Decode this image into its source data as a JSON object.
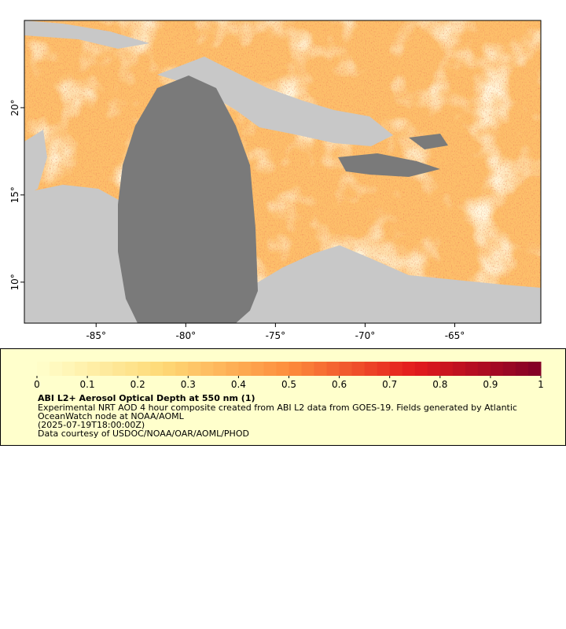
{
  "map": {
    "xlim": [
      -89,
      -60.2
    ],
    "ylim": [
      7.65,
      25
    ],
    "xticks": [
      {
        "value": -85,
        "label": "-85°"
      },
      {
        "value": -80,
        "label": "-80°"
      },
      {
        "value": -75,
        "label": "-75°"
      },
      {
        "value": -70,
        "label": "-70°"
      },
      {
        "value": -65,
        "label": "-65°"
      }
    ],
    "yticks": [
      {
        "value": 10,
        "label": "10°"
      },
      {
        "value": 15,
        "label": "15°"
      },
      {
        "value": 20,
        "label": "20°"
      }
    ]
  },
  "colorbar": {
    "lim": [
      0,
      1
    ],
    "ticks": [
      0,
      0.1,
      0.2,
      0.3,
      0.4,
      0.5,
      0.6,
      0.7,
      0.8,
      0.9,
      1
    ],
    "levels": 40,
    "colors": [
      "#ffffcc",
      "#fed976",
      "#fd8d3c",
      "#e31a1c",
      "#800026"
    ]
  },
  "title": "ABI L2+ Aerosol Optical Depth at 550 nm (1)",
  "description": [
    "Experimental NRT AOD 4 hour composite created from ABI L2 data from GOES-19. Fields generated by Atlantic",
    "OceanWatch node at NOAA/AOML"
  ],
  "date": "(2025-07-19T18:00:00Z)",
  "credit": "Data courtesy of USDOC/NOAA/OAR/AOML/PHOD"
}
